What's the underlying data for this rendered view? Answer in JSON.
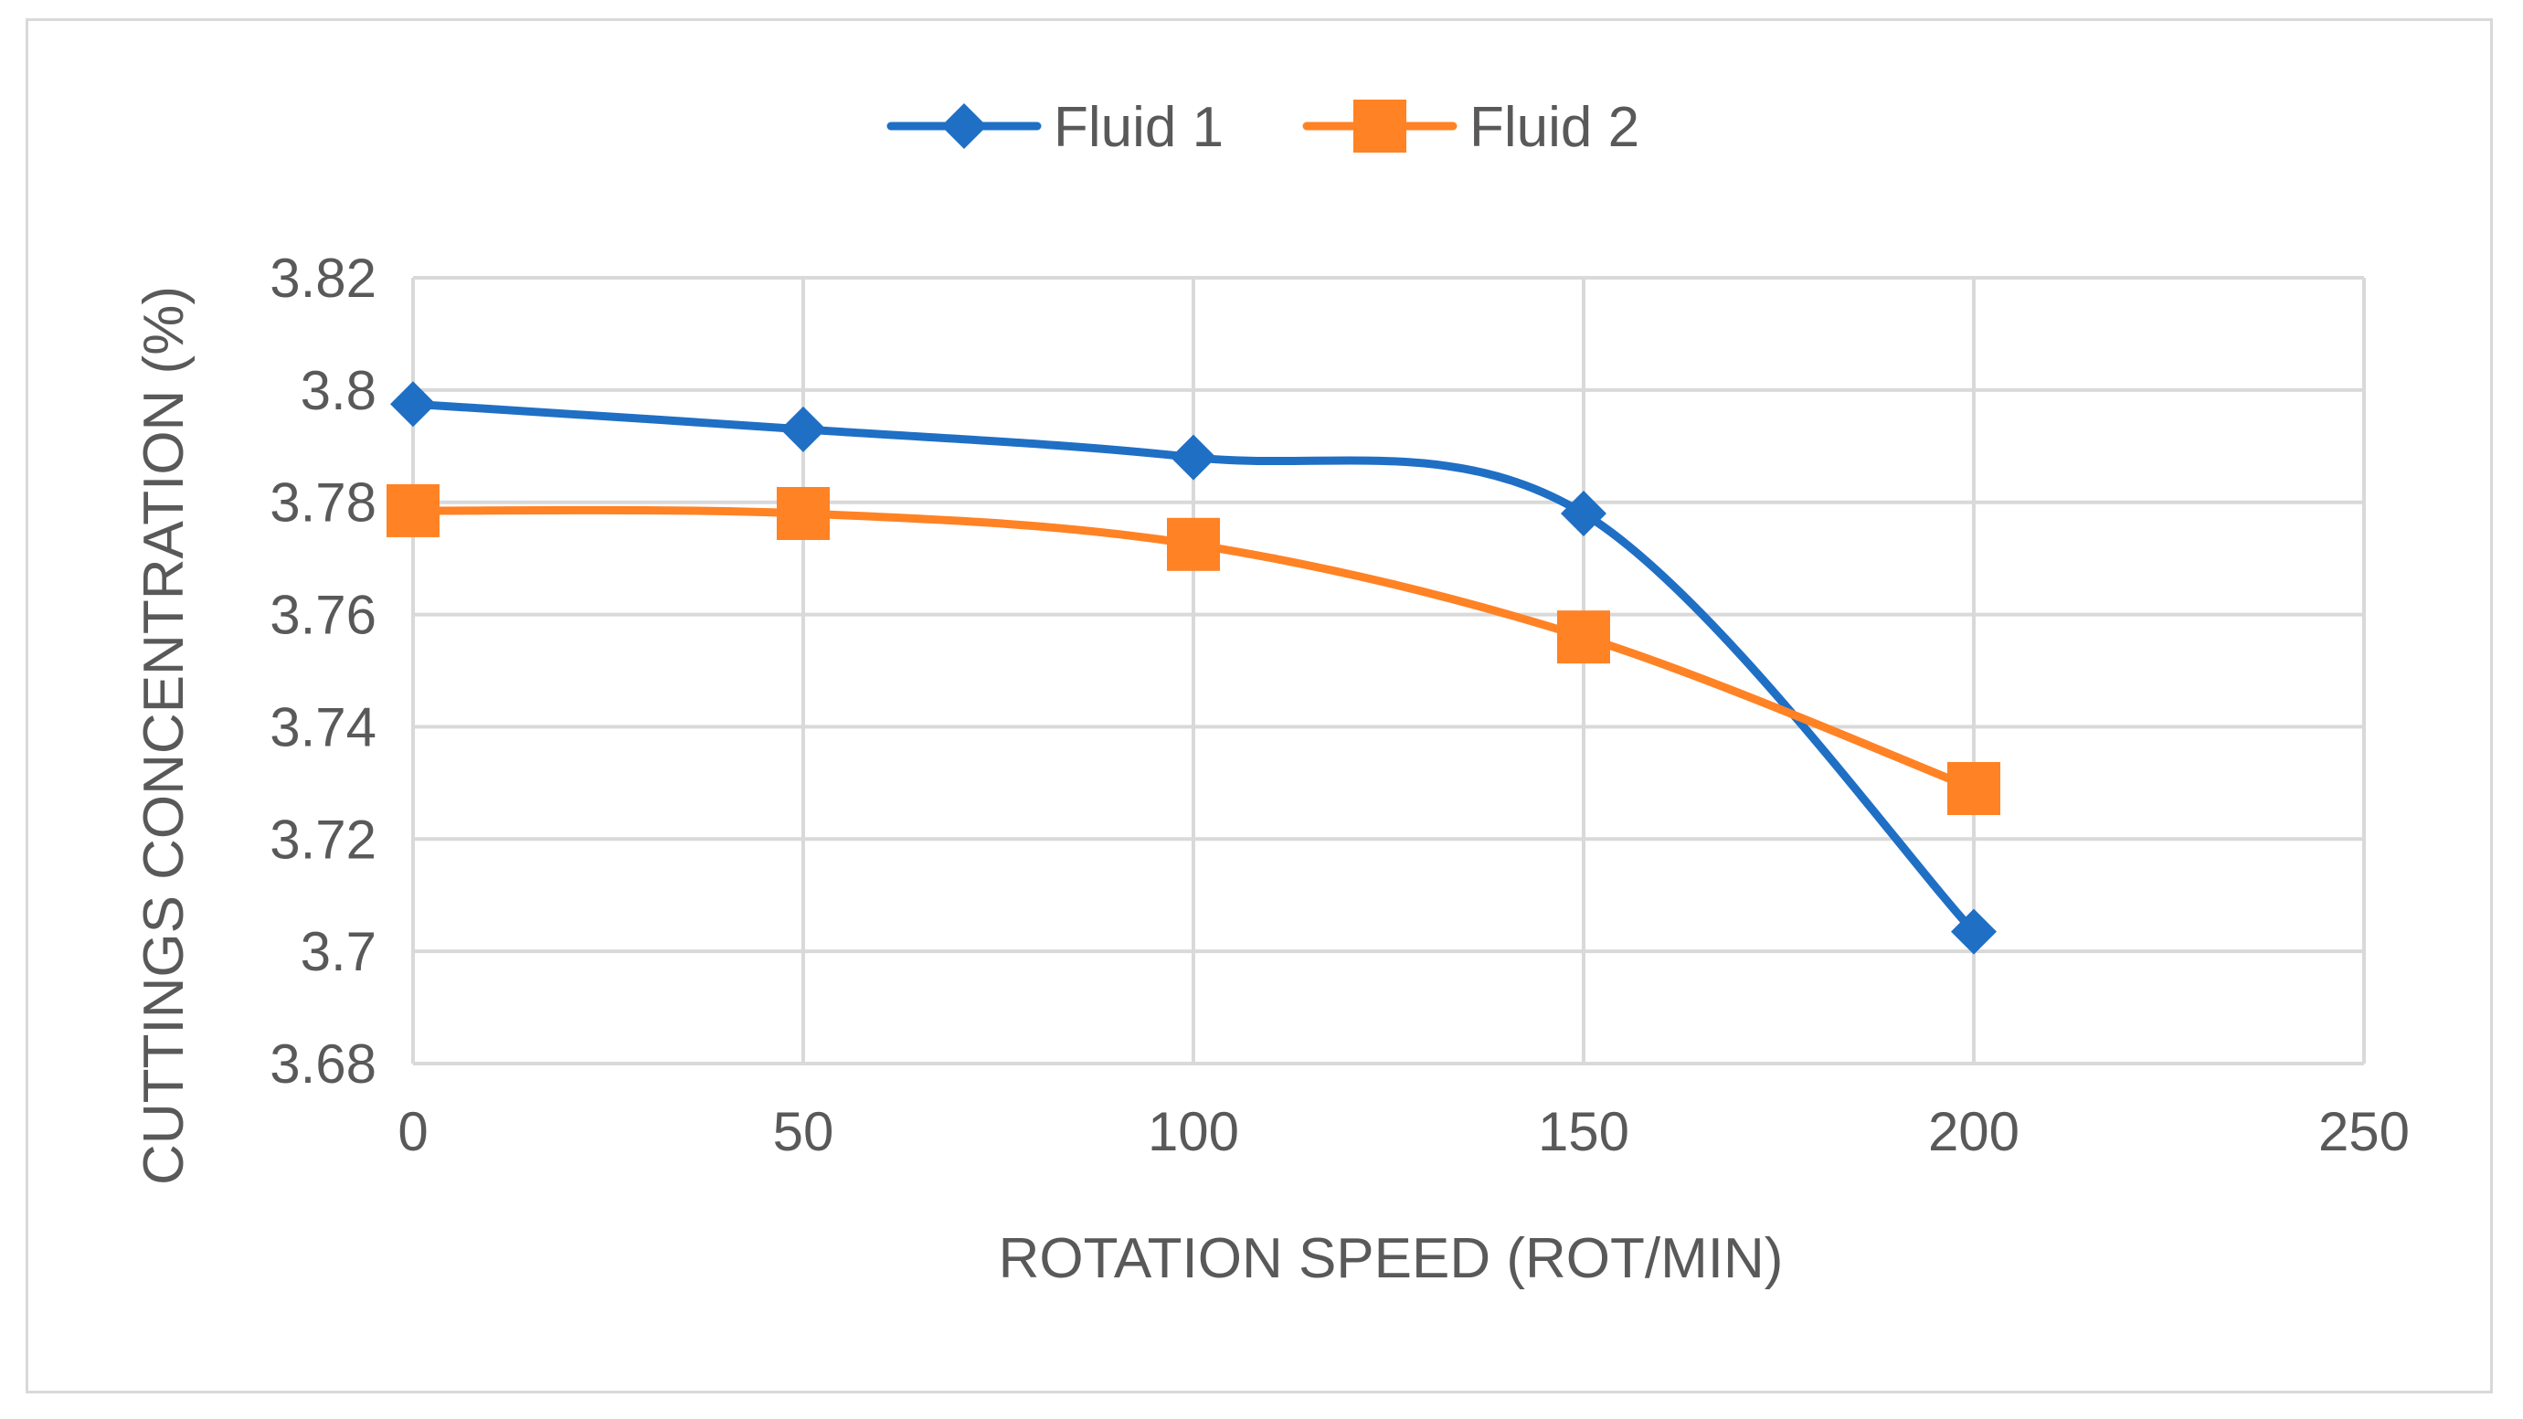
{
  "chart_data": {
    "type": "line",
    "title": "",
    "xlabel": "ROTATION SPEED (ROT/MIN)",
    "ylabel": "CUTTINGS CONCENTRATION (%)",
    "xlim": [
      0,
      250
    ],
    "ylim": [
      3.68,
      3.82
    ],
    "x_ticks": [
      "0",
      "50",
      "100",
      "150",
      "200",
      "250"
    ],
    "y_ticks": [
      "3.68",
      "3.7",
      "3.72",
      "3.74",
      "3.76",
      "3.78",
      "3.8",
      "3.82"
    ],
    "grid": true,
    "smooth": true,
    "legend_position": "top-center",
    "series": [
      {
        "name": "Fluid 1",
        "color": "#1f6fc5",
        "marker": "diamond",
        "x": [
          0,
          50,
          100,
          150,
          200
        ],
        "values": [
          3.7975,
          3.793,
          3.788,
          3.778,
          3.7035
        ]
      },
      {
        "name": "Fluid 2",
        "color": "#ff8224",
        "marker": "square",
        "x": [
          0,
          50,
          100,
          150,
          200
        ],
        "values": [
          3.7785,
          3.778,
          3.7725,
          3.756,
          3.729
        ]
      }
    ]
  }
}
